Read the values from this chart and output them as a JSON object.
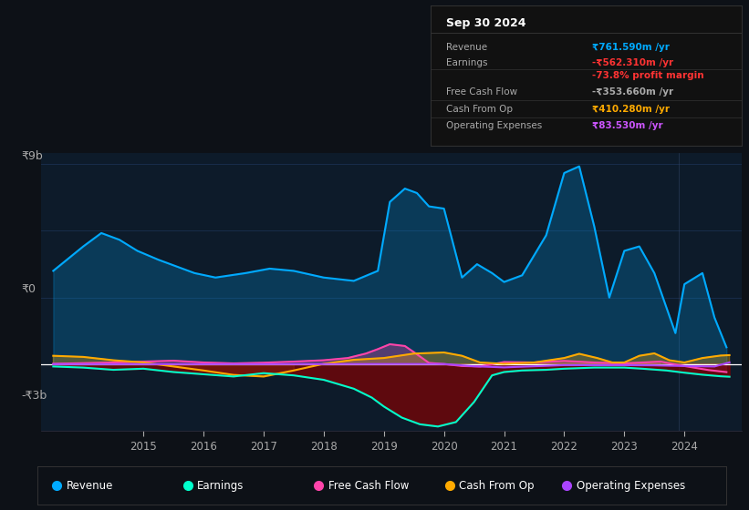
{
  "bg_color": "#0d1117",
  "plot_bg_color": "#0d1b2a",
  "grid_color": "#1a3050",
  "zero_line_color": "#ffffff",
  "ylabel_top": "₹9b",
  "ylabel_zero": "₹0",
  "ylabel_bottom": "-₹3b",
  "x_ticks": [
    2015,
    2016,
    2017,
    2018,
    2019,
    2020,
    2021,
    2022,
    2023,
    2024
  ],
  "ylim": [
    -3000,
    9500
  ],
  "xlim": [
    2013.3,
    2024.95
  ],
  "title_box_date": "Sep 30 2024",
  "info_rows": [
    {
      "label": "Revenue",
      "value": "₹761.590m /yr",
      "value_color": "#00aaff"
    },
    {
      "label": "Earnings",
      "value": "-₹562.310m /yr",
      "value_color": "#ff3333"
    },
    {
      "label": "",
      "value": "-73.8% profit margin",
      "value_color": "#ff3333"
    },
    {
      "label": "Free Cash Flow",
      "value": "-₹353.660m /yr",
      "value_color": "#aaaaaa"
    },
    {
      "label": "Cash From Op",
      "value": "₹410.280m /yr",
      "value_color": "#ffaa00"
    },
    {
      "label": "Operating Expenses",
      "value": "₹83.530m /yr",
      "value_color": "#cc55ff"
    }
  ],
  "legend_items": [
    {
      "label": "Revenue",
      "color": "#00aaff"
    },
    {
      "label": "Earnings",
      "color": "#00ffcc"
    },
    {
      "label": "Free Cash Flow",
      "color": "#ff44aa"
    },
    {
      "label": "Cash From Op",
      "color": "#ffaa00"
    },
    {
      "label": "Operating Expenses",
      "color": "#aa44ff"
    }
  ],
  "revenue_x": [
    2013.5,
    2014.0,
    2014.3,
    2014.6,
    2014.9,
    2015.25,
    2015.55,
    2015.85,
    2016.2,
    2016.7,
    2017.1,
    2017.5,
    2018.0,
    2018.5,
    2018.9,
    2019.1,
    2019.35,
    2019.55,
    2019.75,
    2020.0,
    2020.3,
    2020.55,
    2020.8,
    2021.0,
    2021.3,
    2021.7,
    2022.0,
    2022.25,
    2022.5,
    2022.75,
    2023.0,
    2023.25,
    2023.5,
    2023.85,
    2024.0,
    2024.3,
    2024.5,
    2024.7
  ],
  "revenue_y": [
    4200,
    5300,
    5900,
    5600,
    5100,
    4700,
    4400,
    4100,
    3900,
    4100,
    4300,
    4200,
    3900,
    3750,
    4200,
    7300,
    7900,
    7700,
    7100,
    7000,
    3900,
    4500,
    4100,
    3700,
    4000,
    5800,
    8600,
    8900,
    6200,
    3000,
    5100,
    5300,
    4100,
    1400,
    3600,
    4100,
    2100,
    762
  ],
  "earnings_x": [
    2013.5,
    2014.0,
    2014.5,
    2015.0,
    2015.5,
    2016.0,
    2016.5,
    2017.0,
    2017.5,
    2018.0,
    2018.5,
    2018.8,
    2019.0,
    2019.3,
    2019.6,
    2019.9,
    2020.2,
    2020.5,
    2020.8,
    2021.0,
    2021.3,
    2021.7,
    2022.0,
    2022.5,
    2023.0,
    2023.3,
    2023.7,
    2024.0,
    2024.3,
    2024.6,
    2024.75
  ],
  "earnings_y": [
    -100,
    -150,
    -250,
    -200,
    -350,
    -450,
    -550,
    -400,
    -500,
    -700,
    -1100,
    -1500,
    -1900,
    -2400,
    -2700,
    -2800,
    -2600,
    -1700,
    -500,
    -350,
    -280,
    -250,
    -200,
    -150,
    -150,
    -200,
    -280,
    -380,
    -470,
    -540,
    -562
  ],
  "fcf_x": [
    2013.5,
    2014.0,
    2014.5,
    2015.0,
    2015.5,
    2016.0,
    2016.5,
    2017.0,
    2017.5,
    2018.0,
    2018.4,
    2018.7,
    2018.9,
    2019.1,
    2019.35,
    2019.55,
    2019.75,
    2020.0,
    2020.3,
    2020.6,
    2021.0,
    2021.5,
    2022.0,
    2022.5,
    2023.0,
    2023.3,
    2023.6,
    2024.0,
    2024.4,
    2024.7
  ],
  "fcf_y": [
    20,
    50,
    80,
    120,
    160,
    80,
    40,
    70,
    120,
    180,
    280,
    480,
    680,
    900,
    820,
    450,
    60,
    10,
    -80,
    -100,
    100,
    80,
    150,
    80,
    40,
    80,
    120,
    -80,
    -260,
    -354
  ],
  "cfo_x": [
    2013.5,
    2014.0,
    2014.5,
    2015.0,
    2015.5,
    2016.0,
    2016.5,
    2017.0,
    2017.5,
    2018.0,
    2018.5,
    2019.0,
    2019.5,
    2020.0,
    2020.3,
    2020.6,
    2021.0,
    2021.5,
    2022.0,
    2022.25,
    2022.55,
    2022.8,
    2023.0,
    2023.25,
    2023.5,
    2023.75,
    2024.0,
    2024.3,
    2024.6,
    2024.75
  ],
  "cfo_y": [
    380,
    330,
    180,
    80,
    -100,
    -280,
    -480,
    -550,
    -280,
    20,
    200,
    280,
    480,
    530,
    380,
    80,
    20,
    80,
    280,
    470,
    280,
    80,
    80,
    380,
    490,
    180,
    80,
    280,
    390,
    410
  ],
  "opex_x": [
    2013.5,
    2015.0,
    2017.0,
    2019.0,
    2019.5,
    2020.0,
    2020.5,
    2021.0,
    2021.5,
    2022.0,
    2022.5,
    2023.0,
    2023.5,
    2024.0,
    2024.5,
    2024.75
  ],
  "opex_y": [
    5,
    5,
    5,
    10,
    10,
    10,
    -90,
    -140,
    -90,
    -40,
    -40,
    -40,
    -50,
    -80,
    -100,
    84
  ]
}
